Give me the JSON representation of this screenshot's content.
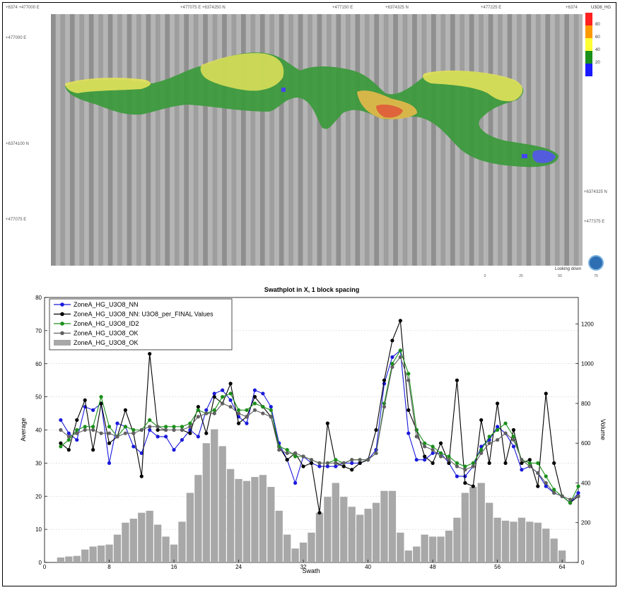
{
  "map": {
    "coords_top": [
      "+6374 +477000 E",
      "+477075 E +6374250 N",
      "+477150 E",
      "+6374325 N",
      "+477225 E",
      "+6374"
    ],
    "coords_left": [
      "+477000 E",
      "+6374100 N",
      "+477075 E"
    ],
    "coords_right": [
      "+6374325 N",
      "+477375 E"
    ],
    "legend_title": "U3O8_HG",
    "legend_bins": [
      {
        "label": "80",
        "color": "#ff2020"
      },
      {
        "label": "60",
        "color": "#ff9900"
      },
      {
        "label": "40",
        "color": "#ffff33"
      },
      {
        "label": "20",
        "color": "#1a8f1a"
      },
      {
        "label": "",
        "color": "#1a1aff"
      }
    ],
    "view_label": "Looking down",
    "scale_ticks": [
      "0",
      "25",
      "50",
      "75"
    ]
  },
  "chart_data": {
    "type": "line",
    "title": "Swathplot in X, 1 block spacing",
    "xlabel": "Swath",
    "ylabel": "Average",
    "y2label": "Volume",
    "xlim": [
      0,
      66
    ],
    "ylim": [
      0,
      80
    ],
    "y2lim": [
      0,
      1333
    ],
    "xticks": [
      0,
      8,
      16,
      24,
      32,
      40,
      48,
      56,
      64
    ],
    "yticks": [
      0,
      10,
      20,
      30,
      40,
      50,
      60,
      70,
      80
    ],
    "y2ticks": [
      0,
      200,
      400,
      600,
      800,
      1000,
      1200
    ],
    "legend_position": "top-left",
    "series": [
      {
        "name": "ZoneA_HG_U3O8_NN",
        "color": "#1a1adb",
        "points": [
          [
            2,
            43
          ],
          [
            3,
            39
          ],
          [
            4,
            37
          ],
          [
            5,
            47
          ],
          [
            6,
            46
          ],
          [
            7,
            48
          ],
          [
            8,
            30
          ],
          [
            9,
            42
          ],
          [
            10,
            41
          ],
          [
            11,
            35
          ],
          [
            12,
            33
          ],
          [
            13,
            40
          ],
          [
            14,
            38
          ],
          [
            15,
            38
          ],
          [
            16,
            34
          ],
          [
            17,
            37
          ],
          [
            18,
            40
          ],
          [
            19,
            38
          ],
          [
            20,
            46
          ],
          [
            21,
            51
          ],
          [
            22,
            52
          ],
          [
            23,
            49
          ],
          [
            24,
            44
          ],
          [
            25,
            42
          ],
          [
            26,
            52
          ],
          [
            27,
            51
          ],
          [
            28,
            47
          ],
          [
            29,
            36
          ],
          [
            30,
            31
          ],
          [
            31,
            24
          ],
          [
            32,
            32
          ],
          [
            33,
            30
          ],
          [
            34,
            29
          ],
          [
            35,
            29
          ],
          [
            36,
            29
          ],
          [
            37,
            30
          ],
          [
            38,
            30
          ],
          [
            39,
            30
          ],
          [
            40,
            31
          ],
          [
            41,
            34
          ],
          [
            42,
            54
          ],
          [
            43,
            62
          ],
          [
            44,
            64
          ],
          [
            45,
            39
          ],
          [
            46,
            31
          ],
          [
            47,
            31
          ],
          [
            48,
            33
          ],
          [
            49,
            33
          ],
          [
            50,
            30
          ],
          [
            51,
            26
          ],
          [
            52,
            26
          ],
          [
            53,
            29
          ],
          [
            54,
            35
          ],
          [
            55,
            37
          ],
          [
            56,
            41
          ],
          [
            57,
            39
          ],
          [
            58,
            35
          ],
          [
            59,
            28
          ],
          [
            60,
            29
          ],
          [
            61,
            27
          ],
          [
            62,
            23
          ],
          [
            63,
            21
          ],
          [
            64,
            20
          ],
          [
            65,
            18
          ],
          [
            66,
            21
          ]
        ]
      },
      {
        "name": "ZoneA_HG_U3O8_NN: U3O8_per_FINAL Values",
        "color": "#000000",
        "points": [
          [
            2,
            36
          ],
          [
            3,
            34
          ],
          [
            4,
            43
          ],
          [
            5,
            49
          ],
          [
            6,
            34
          ],
          [
            7,
            48
          ],
          [
            8,
            36
          ],
          [
            9,
            38
          ],
          [
            10,
            46
          ],
          [
            11,
            39
          ],
          [
            12,
            26
          ],
          [
            13,
            63
          ],
          [
            14,
            40
          ],
          [
            15,
            40
          ],
          [
            16,
            40
          ],
          [
            17,
            40
          ],
          [
            18,
            39
          ],
          [
            19,
            47
          ],
          [
            20,
            39
          ],
          [
            21,
            50
          ],
          [
            22,
            48
          ],
          [
            23,
            54
          ],
          [
            24,
            42
          ],
          [
            25,
            44
          ],
          [
            26,
            50
          ],
          [
            27,
            47
          ],
          [
            28,
            44
          ],
          [
            29,
            35
          ],
          [
            30,
            31
          ],
          [
            31,
            33
          ],
          [
            32,
            29
          ],
          [
            33,
            30
          ],
          [
            34,
            15
          ],
          [
            35,
            42
          ],
          [
            36,
            30
          ],
          [
            37,
            29
          ],
          [
            38,
            28
          ],
          [
            39,
            30
          ],
          [
            40,
            31
          ],
          [
            41,
            40
          ],
          [
            42,
            55
          ],
          [
            43,
            67
          ],
          [
            44,
            73
          ],
          [
            45,
            46
          ],
          [
            46,
            40
          ],
          [
            47,
            32
          ],
          [
            48,
            30
          ],
          [
            49,
            36
          ],
          [
            50,
            30
          ],
          [
            51,
            55
          ],
          [
            52,
            24
          ],
          [
            53,
            23
          ],
          [
            54,
            43
          ],
          [
            55,
            30
          ],
          [
            56,
            48
          ],
          [
            57,
            30
          ],
          [
            58,
            40
          ],
          [
            59,
            30
          ],
          [
            60,
            31
          ],
          [
            61,
            23
          ],
          [
            62,
            51
          ],
          [
            63,
            30
          ],
          [
            64,
            20
          ],
          [
            65,
            18
          ],
          [
            66,
            20
          ]
        ]
      },
      {
        "name": "ZoneA_HG_U3O8_ID2",
        "color": "#1a8f1a",
        "points": [
          [
            2,
            35
          ],
          [
            3,
            37
          ],
          [
            4,
            40
          ],
          [
            5,
            41
          ],
          [
            6,
            41
          ],
          [
            7,
            50
          ],
          [
            8,
            41
          ],
          [
            9,
            38
          ],
          [
            10,
            41
          ],
          [
            11,
            40
          ],
          [
            12,
            40
          ],
          [
            13,
            43
          ],
          [
            14,
            41
          ],
          [
            15,
            41
          ],
          [
            16,
            41
          ],
          [
            17,
            41
          ],
          [
            18,
            42
          ],
          [
            19,
            46
          ],
          [
            20,
            45
          ],
          [
            21,
            46
          ],
          [
            22,
            50
          ],
          [
            23,
            51
          ],
          [
            24,
            46
          ],
          [
            25,
            46
          ],
          [
            26,
            48
          ],
          [
            27,
            47
          ],
          [
            28,
            46
          ],
          [
            29,
            35
          ],
          [
            30,
            34
          ],
          [
            31,
            32
          ],
          [
            32,
            32
          ],
          [
            33,
            31
          ],
          [
            34,
            30
          ],
          [
            35,
            30
          ],
          [
            36,
            31
          ],
          [
            37,
            30
          ],
          [
            38,
            31
          ],
          [
            39,
            31
          ],
          [
            40,
            31
          ],
          [
            41,
            33
          ],
          [
            42,
            48
          ],
          [
            43,
            60
          ],
          [
            44,
            64
          ],
          [
            45,
            57
          ],
          [
            46,
            40
          ],
          [
            47,
            36
          ],
          [
            48,
            35
          ],
          [
            49,
            33
          ],
          [
            50,
            32
          ],
          [
            51,
            30
          ],
          [
            52,
            29
          ],
          [
            53,
            30
          ],
          [
            54,
            34
          ],
          [
            55,
            38
          ],
          [
            56,
            40
          ],
          [
            57,
            42
          ],
          [
            58,
            38
          ],
          [
            59,
            31
          ],
          [
            60,
            30
          ],
          [
            61,
            30
          ],
          [
            62,
            26
          ],
          [
            63,
            22
          ],
          [
            64,
            20
          ],
          [
            65,
            18
          ],
          [
            66,
            23
          ]
        ]
      },
      {
        "name": "ZoneA_HG_U3O8_OK",
        "color": "#606060",
        "points": [
          [
            2,
            40
          ],
          [
            3,
            38
          ],
          [
            4,
            39
          ],
          [
            5,
            40
          ],
          [
            6,
            40
          ],
          [
            7,
            39
          ],
          [
            8,
            39
          ],
          [
            9,
            38
          ],
          [
            10,
            39
          ],
          [
            11,
            39
          ],
          [
            12,
            40
          ],
          [
            13,
            41
          ],
          [
            14,
            41
          ],
          [
            15,
            40
          ],
          [
            16,
            40
          ],
          [
            17,
            40
          ],
          [
            18,
            41
          ],
          [
            19,
            44
          ],
          [
            20,
            45
          ],
          [
            21,
            45
          ],
          [
            22,
            48
          ],
          [
            23,
            47
          ],
          [
            24,
            45
          ],
          [
            25,
            44
          ],
          [
            26,
            46
          ],
          [
            27,
            45
          ],
          [
            28,
            44
          ],
          [
            29,
            34
          ],
          [
            30,
            33
          ],
          [
            31,
            33
          ],
          [
            32,
            32
          ],
          [
            33,
            31
          ],
          [
            34,
            30
          ],
          [
            35,
            30
          ],
          [
            36,
            30
          ],
          [
            37,
            30
          ],
          [
            38,
            31
          ],
          [
            39,
            31
          ],
          [
            40,
            31
          ],
          [
            41,
            33
          ],
          [
            42,
            47
          ],
          [
            43,
            59
          ],
          [
            44,
            62
          ],
          [
            45,
            55
          ],
          [
            46,
            38
          ],
          [
            47,
            35
          ],
          [
            48,
            34
          ],
          [
            49,
            32
          ],
          [
            50,
            31
          ],
          [
            51,
            29
          ],
          [
            52,
            28
          ],
          [
            53,
            29
          ],
          [
            54,
            33
          ],
          [
            55,
            36
          ],
          [
            56,
            37
          ],
          [
            57,
            39
          ],
          [
            58,
            37
          ],
          [
            59,
            31
          ],
          [
            60,
            29
          ],
          [
            61,
            27
          ],
          [
            62,
            24
          ],
          [
            63,
            21
          ],
          [
            64,
            20
          ],
          [
            65,
            19
          ],
          [
            66,
            20
          ]
        ]
      }
    ],
    "bars": {
      "name": "ZoneA_HG_U3O8_OK",
      "color": "#a8a8a8",
      "x": [
        2,
        3,
        4,
        5,
        6,
        7,
        8,
        9,
        10,
        11,
        12,
        13,
        14,
        15,
        16,
        17,
        18,
        19,
        20,
        21,
        22,
        23,
        24,
        25,
        26,
        27,
        28,
        29,
        30,
        31,
        32,
        33,
        34,
        35,
        36,
        37,
        38,
        39,
        40,
        41,
        42,
        43,
        44,
        45,
        46,
        47,
        48,
        49,
        50,
        51,
        52,
        53,
        54,
        55,
        56,
        57,
        58,
        59,
        60,
        61,
        62,
        63,
        64,
        65
      ],
      "values": [
        25,
        30,
        33,
        65,
        80,
        85,
        90,
        140,
        200,
        220,
        250,
        260,
        190,
        130,
        90,
        205,
        350,
        440,
        600,
        670,
        585,
        470,
        420,
        410,
        430,
        440,
        380,
        260,
        140,
        70,
        100,
        150,
        250,
        330,
        400,
        330,
        280,
        240,
        270,
        300,
        360,
        360,
        150,
        60,
        80,
        140,
        130,
        130,
        160,
        225,
        350,
        380,
        400,
        300,
        225,
        210,
        205,
        225,
        205,
        200,
        170,
        120,
        60,
        0
      ],
      "ylabel": "Volume"
    }
  }
}
